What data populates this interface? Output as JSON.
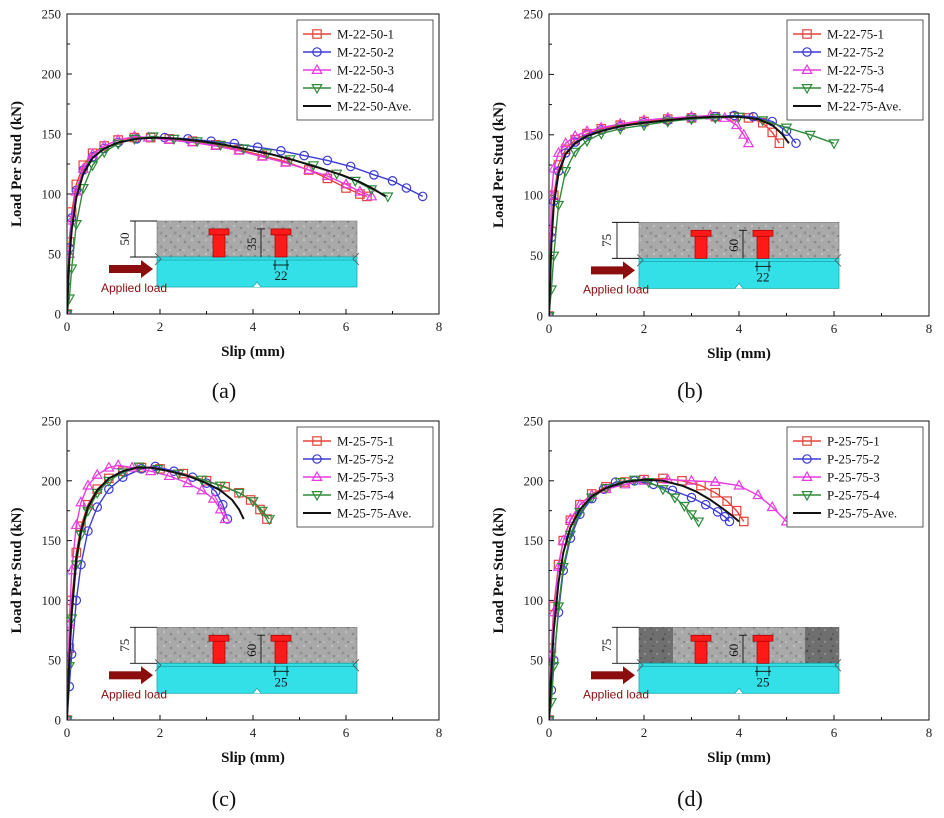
{
  "chart_data": [
    {
      "id": "a",
      "type": "line",
      "caption_prefix": "(",
      "caption_letter": "a",
      "caption_suffix": ")",
      "xlabel": "Slip (mm)",
      "ylabel": "Load Per Stud (kN)",
      "xlim": [
        0,
        8
      ],
      "ylim": [
        0,
        250
      ],
      "xticks": [
        0,
        2,
        4,
        6,
        8
      ],
      "yticks": [
        0,
        50,
        100,
        150,
        200,
        250
      ],
      "legend_position": "top-right",
      "inset": {
        "concrete_height": "50",
        "stud_height": "35",
        "stud_diameter": "22",
        "load_label": "Applied load",
        "side_texture": false
      },
      "series": [
        {
          "name": "M-22-50-1",
          "color": "#e8433b",
          "marker": "square",
          "x": [
            0,
            0.05,
            0.1,
            0.2,
            0.35,
            0.55,
            0.8,
            1.1,
            1.45,
            1.8,
            2.2,
            2.7,
            3.2,
            3.7,
            4.2,
            4.7,
            5.2,
            5.6,
            6.0,
            6.3,
            6.45
          ],
          "y": [
            0,
            60,
            85,
            108,
            124,
            134,
            140,
            145,
            147,
            147,
            146,
            144,
            141,
            137,
            132,
            127,
            120,
            113,
            105,
            100,
            98
          ]
        },
        {
          "name": "M-22-50-2",
          "color": "#3b3bd6",
          "marker": "circle",
          "x": [
            0,
            0.05,
            0.1,
            0.2,
            0.35,
            0.55,
            0.8,
            1.1,
            1.5,
            2.1,
            2.6,
            3.1,
            3.6,
            4.1,
            4.6,
            5.1,
            5.6,
            6.1,
            6.6,
            7.0,
            7.3,
            7.65
          ],
          "y": [
            0,
            55,
            80,
            103,
            120,
            131,
            138,
            143,
            146,
            147,
            146,
            144,
            142,
            139,
            136,
            132,
            128,
            123,
            116,
            111,
            105,
            98
          ]
        },
        {
          "name": "M-22-50-3",
          "color": "#e83be0",
          "marker": "triangle-up",
          "x": [
            0,
            0.05,
            0.1,
            0.2,
            0.35,
            0.55,
            0.8,
            1.1,
            1.45,
            1.75,
            2.2,
            2.7,
            3.2,
            3.7,
            4.2,
            4.7,
            5.2,
            5.6,
            6.0,
            6.3,
            6.55
          ],
          "y": [
            0,
            50,
            78,
            102,
            121,
            133,
            140,
            145,
            148,
            147,
            145,
            143,
            140,
            136,
            131,
            126,
            120,
            115,
            108,
            102,
            98
          ]
        },
        {
          "name": "M-22-50-4",
          "color": "#2e8b3a",
          "marker": "triangle-down",
          "x": [
            0,
            0.05,
            0.1,
            0.2,
            0.35,
            0.55,
            0.8,
            1.1,
            1.45,
            1.85,
            2.3,
            2.8,
            3.3,
            3.8,
            4.3,
            4.8,
            5.3,
            5.8,
            6.2,
            6.55,
            6.9
          ],
          "y": [
            0,
            13,
            38,
            75,
            105,
            124,
            135,
            142,
            146,
            148,
            146,
            144,
            141,
            138,
            134,
            129,
            124,
            117,
            111,
            104,
            98
          ]
        },
        {
          "name": "M-22-50-Ave.",
          "color": "#111111",
          "marker": "none",
          "x": [
            0,
            0.05,
            0.1,
            0.2,
            0.35,
            0.55,
            0.8,
            1.1,
            1.5,
            1.9,
            2.4,
            2.9,
            3.4,
            3.9,
            4.4,
            4.9,
            5.4,
            5.9,
            6.3,
            6.6,
            6.85
          ],
          "y": [
            0,
            45,
            70,
            97,
            117,
            130,
            138,
            143,
            146,
            147,
            146,
            144,
            141,
            137,
            133,
            128,
            122,
            116,
            110,
            104,
            98
          ]
        }
      ]
    },
    {
      "id": "b",
      "type": "line",
      "caption_prefix": "(",
      "caption_letter": "b",
      "caption_suffix": ")",
      "xlabel": "Slip (mm)",
      "ylabel": "Load Per Stud (kN)",
      "xlim": [
        0,
        8
      ],
      "ylim": [
        0,
        250
      ],
      "xticks": [
        0,
        2,
        4,
        6,
        8
      ],
      "yticks": [
        0,
        50,
        100,
        150,
        200,
        250
      ],
      "legend_position": "top-right",
      "inset": {
        "concrete_height": "75",
        "stud_height": "60",
        "stud_diameter": "22",
        "load_label": "Applied load",
        "side_texture": false
      },
      "series": [
        {
          "name": "M-22-75-1",
          "color": "#e8433b",
          "marker": "square",
          "x": [
            0,
            0.05,
            0.1,
            0.2,
            0.35,
            0.55,
            0.8,
            1.1,
            1.5,
            2.0,
            2.5,
            3.0,
            3.5,
            3.9,
            4.2,
            4.5,
            4.7,
            4.85
          ],
          "y": [
            0,
            70,
            100,
            125,
            138,
            146,
            151,
            155,
            158,
            161,
            163,
            164,
            165,
            165,
            164,
            160,
            152,
            143
          ]
        },
        {
          "name": "M-22-75-2",
          "color": "#3b3bd6",
          "marker": "circle",
          "x": [
            0,
            0.05,
            0.1,
            0.2,
            0.35,
            0.55,
            0.8,
            1.1,
            1.5,
            2.0,
            2.5,
            3.0,
            3.5,
            3.9,
            4.3,
            4.7,
            5.0,
            5.2
          ],
          "y": [
            0,
            65,
            95,
            120,
            135,
            144,
            150,
            154,
            157,
            160,
            162,
            164,
            165,
            166,
            165,
            161,
            153,
            143
          ]
        },
        {
          "name": "M-22-75-3",
          "color": "#e83be0",
          "marker": "triangle-up",
          "x": [
            0,
            0.05,
            0.1,
            0.2,
            0.35,
            0.55,
            0.8,
            1.1,
            1.5,
            2.0,
            2.5,
            3.0,
            3.4,
            3.7,
            3.95,
            4.1,
            4.2
          ],
          "y": [
            0,
            100,
            122,
            135,
            143,
            149,
            153,
            156,
            159,
            162,
            164,
            165,
            166,
            164,
            158,
            150,
            143
          ]
        },
        {
          "name": "M-22-75-4",
          "color": "#2e8b3a",
          "marker": "triangle-down",
          "x": [
            0,
            0.05,
            0.1,
            0.2,
            0.35,
            0.55,
            0.8,
            1.1,
            1.5,
            2.0,
            2.5,
            3.0,
            3.5,
            4.0,
            4.5,
            5.0,
            5.5,
            6.0
          ],
          "y": [
            0,
            22,
            50,
            92,
            120,
            136,
            145,
            151,
            155,
            158,
            161,
            163,
            164,
            165,
            162,
            156,
            150,
            143
          ]
        },
        {
          "name": "M-22-75-Ave.",
          "color": "#111111",
          "marker": "none",
          "x": [
            0,
            0.05,
            0.1,
            0.2,
            0.35,
            0.55,
            0.8,
            1.1,
            1.5,
            2.0,
            2.5,
            3.0,
            3.5,
            4.0,
            4.4,
            4.7,
            4.9,
            5.05
          ],
          "y": [
            0,
            60,
            92,
            118,
            134,
            143,
            149,
            153,
            157,
            160,
            162,
            164,
            165,
            165,
            163,
            158,
            151,
            143
          ]
        }
      ]
    },
    {
      "id": "c",
      "type": "line",
      "caption_prefix": "(",
      "caption_letter": "c",
      "caption_suffix": ")",
      "xlabel": "Slip (mm)",
      "ylabel": "Load Per Stud (kN)",
      "xlim": [
        0,
        8
      ],
      "ylim": [
        0,
        250
      ],
      "xticks": [
        0,
        2,
        4,
        6,
        8
      ],
      "yticks": [
        0,
        50,
        100,
        150,
        200,
        250
      ],
      "legend_position": "top-right",
      "inset": {
        "concrete_height": "75",
        "stud_height": "60",
        "stud_diameter": "25",
        "load_label": "Applied load",
        "side_texture": false
      },
      "series": [
        {
          "name": "M-25-75-1",
          "color": "#e8433b",
          "marker": "square",
          "x": [
            0,
            0.05,
            0.1,
            0.2,
            0.3,
            0.45,
            0.65,
            0.9,
            1.2,
            1.6,
            2.0,
            2.5,
            3.0,
            3.4,
            3.7,
            3.95,
            4.15,
            4.3
          ],
          "y": [
            0,
            60,
            100,
            140,
            162,
            180,
            193,
            202,
            208,
            211,
            210,
            206,
            200,
            195,
            190,
            184,
            176,
            168
          ]
        },
        {
          "name": "M-25-75-2",
          "color": "#3b3bd6",
          "marker": "circle",
          "x": [
            0,
            0.05,
            0.1,
            0.2,
            0.3,
            0.45,
            0.65,
            0.9,
            1.2,
            1.6,
            1.9,
            2.3,
            2.7,
            3.0,
            3.2,
            3.35,
            3.45
          ],
          "y": [
            0,
            28,
            55,
            100,
            130,
            158,
            178,
            193,
            203,
            210,
            212,
            208,
            203,
            198,
            191,
            180,
            168
          ]
        },
        {
          "name": "M-25-75-3",
          "color": "#e83be0",
          "marker": "triangle-up",
          "x": [
            0,
            0.05,
            0.1,
            0.2,
            0.3,
            0.45,
            0.65,
            0.9,
            1.1,
            1.4,
            1.8,
            2.2,
            2.6,
            2.9,
            3.15,
            3.3,
            3.4
          ],
          "y": [
            0,
            80,
            125,
            163,
            182,
            196,
            205,
            211,
            213,
            211,
            208,
            204,
            198,
            192,
            185,
            176,
            168
          ]
        },
        {
          "name": "M-25-75-4",
          "color": "#2e8b3a",
          "marker": "triangle-down",
          "x": [
            0,
            0.05,
            0.1,
            0.2,
            0.3,
            0.45,
            0.65,
            0.9,
            1.2,
            1.55,
            1.95,
            2.4,
            2.9,
            3.3,
            3.7,
            4.0,
            4.2,
            4.35
          ],
          "y": [
            0,
            45,
            85,
            130,
            155,
            175,
            190,
            200,
            207,
            212,
            210,
            206,
            201,
            196,
            190,
            183,
            175,
            168
          ]
        },
        {
          "name": "M-25-75-Ave.",
          "color": "#111111",
          "marker": "none",
          "x": [
            0,
            0.05,
            0.1,
            0.2,
            0.3,
            0.45,
            0.65,
            0.9,
            1.2,
            1.5,
            1.8,
            2.2,
            2.6,
            3.0,
            3.3,
            3.55,
            3.7,
            3.8
          ],
          "y": [
            0,
            50,
            90,
            135,
            158,
            178,
            192,
            202,
            208,
            211,
            211,
            208,
            204,
            198,
            192,
            184,
            176,
            168
          ]
        }
      ]
    },
    {
      "id": "d",
      "type": "line",
      "caption_prefix": "(",
      "caption_letter": "d",
      "caption_suffix": ")",
      "xlabel": "Slip (mm)",
      "ylabel": "Load Per Stud (kN)",
      "xlim": [
        0,
        8
      ],
      "ylim": [
        0,
        250
      ],
      "xticks": [
        0,
        2,
        4,
        6,
        8
      ],
      "yticks": [
        0,
        50,
        100,
        150,
        200,
        250
      ],
      "legend_position": "top-right",
      "inset": {
        "concrete_height": "75",
        "stud_height": "60",
        "stud_diameter": "25",
        "load_label": "Applied load",
        "side_texture": true
      },
      "series": [
        {
          "name": "P-25-75-1",
          "color": "#e8433b",
          "marker": "square",
          "x": [
            0,
            0.05,
            0.1,
            0.2,
            0.3,
            0.45,
            0.65,
            0.9,
            1.2,
            1.6,
            2.0,
            2.4,
            2.8,
            3.2,
            3.5,
            3.75,
            3.95,
            4.1
          ],
          "y": [
            0,
            60,
            95,
            130,
            150,
            167,
            180,
            189,
            195,
            199,
            201,
            202,
            200,
            196,
            190,
            183,
            175,
            166
          ]
        },
        {
          "name": "P-25-75-2",
          "color": "#3b3bd6",
          "marker": "circle",
          "x": [
            0,
            0.05,
            0.1,
            0.2,
            0.3,
            0.45,
            0.65,
            0.9,
            1.15,
            1.4,
            1.8,
            2.2,
            2.6,
            3.0,
            3.3,
            3.55,
            3.7,
            3.8
          ],
          "y": [
            0,
            25,
            50,
            90,
            125,
            152,
            172,
            185,
            193,
            199,
            200,
            197,
            192,
            186,
            180,
            174,
            170,
            166
          ]
        },
        {
          "name": "P-25-75-3",
          "color": "#e83be0",
          "marker": "triangle-up",
          "x": [
            0,
            0.05,
            0.1,
            0.2,
            0.3,
            0.45,
            0.65,
            0.9,
            1.2,
            1.6,
            2.0,
            2.5,
            3.0,
            3.5,
            4.0,
            4.4,
            4.7,
            5.0
          ],
          "y": [
            0,
            55,
            90,
            128,
            150,
            168,
            180,
            188,
            193,
            197,
            200,
            201,
            200,
            199,
            196,
            188,
            178,
            166
          ]
        },
        {
          "name": "P-25-75-4",
          "color": "#2e8b3a",
          "marker": "triangle-down",
          "x": [
            0,
            0.05,
            0.1,
            0.2,
            0.3,
            0.45,
            0.65,
            0.9,
            1.2,
            1.5,
            1.8,
            2.1,
            2.4,
            2.65,
            2.85,
            3.0,
            3.15
          ],
          "y": [
            0,
            15,
            45,
            95,
            128,
            155,
            174,
            186,
            194,
            199,
            201,
            199,
            193,
            186,
            179,
            172,
            166
          ]
        },
        {
          "name": "P-25-75-Ave.",
          "color": "#111111",
          "marker": "none",
          "x": [
            0,
            0.05,
            0.1,
            0.2,
            0.3,
            0.45,
            0.65,
            0.9,
            1.2,
            1.6,
            2.0,
            2.4,
            2.8,
            3.1,
            3.4,
            3.65,
            3.85,
            4.0
          ],
          "y": [
            0,
            40,
            75,
            115,
            140,
            161,
            176,
            187,
            194,
            199,
            201,
            200,
            196,
            191,
            184,
            177,
            171,
            166
          ]
        }
      ]
    }
  ]
}
